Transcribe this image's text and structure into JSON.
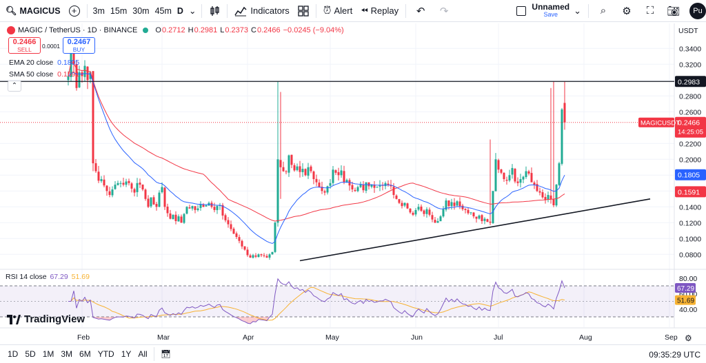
{
  "toolbar": {
    "symbol": "MAGICUS",
    "intervals": [
      "3m",
      "15m",
      "30m",
      "45m",
      "D"
    ],
    "indicators_label": "Indicators",
    "alert_label": "Alert",
    "replay_label": "Replay",
    "layout_name": "Unnamed",
    "layout_status": "Save",
    "user_initials": "Pu"
  },
  "legend": {
    "title": "MAGIC / TetherUS · 1D · BINANCE",
    "o_label": "O",
    "o": "0.2712",
    "h_label": "H",
    "h": "0.2981",
    "l_label": "L",
    "l": "0.2373",
    "c_label": "C",
    "c": "0.2466",
    "change": "−0.0245 (−9.04%)",
    "sell_price": "0.2466",
    "sell_label": "SELL",
    "buy_price": "0.2467",
    "buy_label": "BUY",
    "spread": "0.0001",
    "ema_label": "EMA 20 close",
    "ema_value": "0.1805",
    "sma_label": "SMA 50 close",
    "sma_value": "0.1591",
    "rsi_label": "RSI 14 close",
    "rsi_value": "67.29",
    "rsi_ma_value": "51.69",
    "currency": "USDT",
    "brand": "TradingView"
  },
  "bottombar": {
    "ranges": [
      "1D",
      "5D",
      "1M",
      "3M",
      "6M",
      "YTD",
      "1Y",
      "All"
    ],
    "clock": "09:35:29 UTC"
  },
  "colors": {
    "up": "#22ab94",
    "down": "#f23645",
    "ema": "#2962ff",
    "sma": "#f23645",
    "rsi": "#7e57c2",
    "rsi_ma": "#f7b232"
  },
  "chart_data": {
    "type": "candlestick",
    "symbol": "MAGICUSDT",
    "exchange": "BINANCE",
    "interval": "1D",
    "price_axis": {
      "ticks": [
        "0.0800",
        "0.1000",
        "0.1200",
        "0.1400",
        "0.1600",
        "0.1800",
        "0.2000",
        "0.2200",
        "0.2600",
        "0.2800",
        "0.3000",
        "0.3200",
        "0.3400"
      ],
      "range": [
        0.0665,
        0.3662
      ]
    },
    "time_axis": [
      "Feb",
      "Mar",
      "Apr",
      "May",
      "Jun",
      "Jul",
      "Aug",
      "Sep"
    ],
    "horizontal_line": {
      "value": 0.2983,
      "label": "0.2983"
    },
    "last_price": {
      "label": "MAGICUSDT",
      "value": "0.2466",
      "countdown": "14:25:05"
    },
    "ema_price_label": "0.1805",
    "sma_price_label": "0.1591",
    "trendline": {
      "start": [
        "2024-04-20",
        0.072
      ],
      "end": [
        "2024-08-25",
        0.15
      ]
    },
    "close": [
      0.305,
      0.34,
      0.32,
      0.29,
      0.31,
      0.305,
      0.318,
      0.3,
      0.31,
      0.195,
      0.185,
      0.173,
      0.175,
      0.167,
      0.16,
      0.155,
      0.162,
      0.168,
      0.17,
      0.17,
      0.168,
      0.172,
      0.17,
      0.163,
      0.158,
      0.17,
      0.168,
      0.162,
      0.15,
      0.14,
      0.152,
      0.143,
      0.14,
      0.158,
      0.165,
      0.14,
      0.132,
      0.125,
      0.13,
      0.122,
      0.128,
      0.12,
      0.131,
      0.14,
      0.138,
      0.141,
      0.136,
      0.138,
      0.143,
      0.14,
      0.142,
      0.145,
      0.14,
      0.136,
      0.141,
      0.142,
      0.129,
      0.123,
      0.118,
      0.112,
      0.106,
      0.102,
      0.097,
      0.09,
      0.086,
      0.079,
      0.076,
      0.079,
      0.077,
      0.08,
      0.079,
      0.078,
      0.076,
      0.08,
      0.083,
      0.12,
      0.2,
      0.19,
      0.185,
      0.184,
      0.205,
      0.193,
      0.186,
      0.191,
      0.184,
      0.188,
      0.18,
      0.19,
      0.185,
      0.175,
      0.171,
      0.165,
      0.16,
      0.158,
      0.166,
      0.17,
      0.187,
      0.183,
      0.18,
      0.186,
      0.171,
      0.174,
      0.167,
      0.162,
      0.16,
      0.165,
      0.168,
      0.161,
      0.171,
      0.166,
      0.168,
      0.164,
      0.165,
      0.167,
      0.167,
      0.17,
      0.168,
      0.166,
      0.155,
      0.15,
      0.145,
      0.141,
      0.145,
      0.138,
      0.133,
      0.13,
      0.136,
      0.14,
      0.135,
      0.131,
      0.137,
      0.13,
      0.124,
      0.12,
      0.122,
      0.128,
      0.137,
      0.148,
      0.141,
      0.146,
      0.141,
      0.147,
      0.141,
      0.137,
      0.136,
      0.132,
      0.133,
      0.128,
      0.125,
      0.129,
      0.122,
      0.125,
      0.121,
      0.12,
      0.16,
      0.2,
      0.187,
      0.183,
      0.175,
      0.173,
      0.18,
      0.189,
      0.172,
      0.17,
      0.175,
      0.178,
      0.185,
      0.182,
      0.171,
      0.168,
      0.16,
      0.158,
      0.152,
      0.149,
      0.155,
      0.15,
      0.142,
      0.168,
      0.195,
      0.263,
      0.2466
    ]
  }
}
